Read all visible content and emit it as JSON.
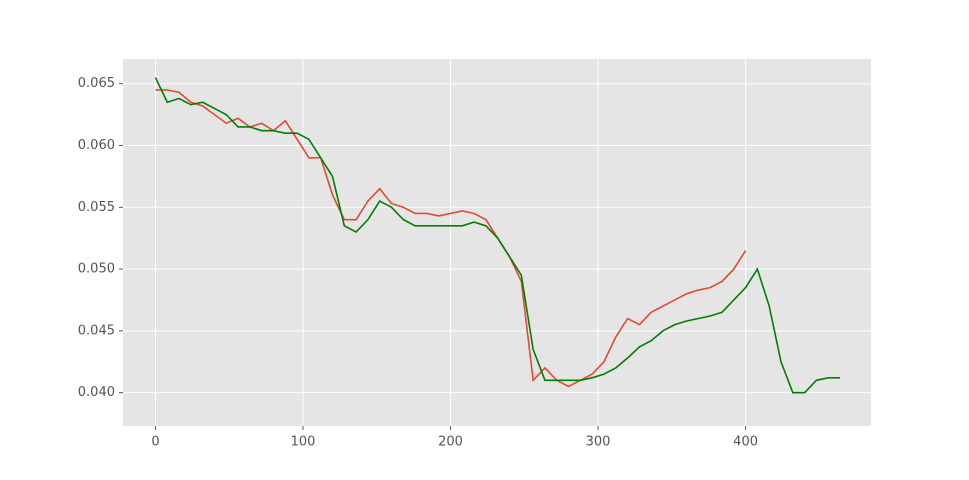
{
  "chart_data": {
    "type": "line",
    "x": [
      0,
      8,
      16,
      24,
      32,
      40,
      48,
      56,
      64,
      72,
      80,
      88,
      96,
      104,
      112,
      120,
      128,
      136,
      144,
      152,
      160,
      168,
      176,
      184,
      192,
      200,
      208,
      216,
      224,
      232,
      240,
      248,
      256,
      264,
      272,
      280,
      288,
      296,
      304,
      312,
      320,
      328,
      336,
      344,
      352,
      360,
      368,
      376,
      384,
      392,
      400,
      408,
      416,
      424,
      432,
      440,
      448,
      456,
      464
    ],
    "series": [
      {
        "color": "#e24a33",
        "values": [
          0.0645,
          0.0645,
          0.0643,
          0.0635,
          0.0632,
          0.0625,
          0.0618,
          0.0622,
          0.0615,
          0.0618,
          0.0612,
          0.062,
          0.0605,
          0.059,
          0.059,
          0.056,
          0.054,
          0.054,
          0.0555,
          0.0565,
          0.0553,
          0.055,
          0.0545,
          0.0545,
          0.0543,
          0.0545,
          0.0547,
          0.0545,
          0.054,
          0.0525,
          0.051,
          0.049,
          0.041,
          0.042,
          0.041,
          0.0405,
          0.041,
          0.0415,
          0.0425,
          0.0445,
          0.046,
          0.0455,
          0.0465,
          0.047,
          0.0475,
          0.048,
          0.0483,
          0.0485,
          0.049,
          0.05,
          0.0515,
          null,
          null,
          null,
          null,
          null,
          null,
          null,
          null
        ]
      },
      {
        "color": "#008000",
        "values": [
          0.0655,
          0.0635,
          0.0638,
          0.0633,
          0.0635,
          0.063,
          0.0625,
          0.0615,
          0.0615,
          0.0612,
          0.0612,
          0.061,
          0.061,
          0.0605,
          0.059,
          0.0575,
          0.0535,
          0.053,
          0.054,
          0.0555,
          0.055,
          0.054,
          0.0535,
          0.0535,
          0.0535,
          0.0535,
          0.0535,
          0.0538,
          0.0535,
          0.0525,
          0.051,
          0.0495,
          0.0435,
          0.041,
          0.041,
          0.041,
          0.041,
          0.0412,
          0.0415,
          0.042,
          0.0428,
          0.0437,
          0.0442,
          0.045,
          0.0455,
          0.0458,
          0.046,
          0.0462,
          0.0465,
          0.0475,
          0.0485,
          0.05,
          0.047,
          0.0425,
          0.04,
          0.04,
          0.041,
          0.0412,
          0.0412
        ]
      }
    ],
    "xlim": [
      -22,
      485
    ],
    "ylim": [
      0.0373,
      0.067
    ],
    "xticks": [
      0,
      100,
      200,
      300,
      400
    ],
    "yticks": [
      {
        "value": 0.04,
        "label": "0.040"
      },
      0.045,
      {
        "value": 0.05,
        "label": "0.050"
      },
      0.055,
      {
        "value": 0.06,
        "label": "0.060"
      },
      0.065
    ],
    "grid": true
  }
}
